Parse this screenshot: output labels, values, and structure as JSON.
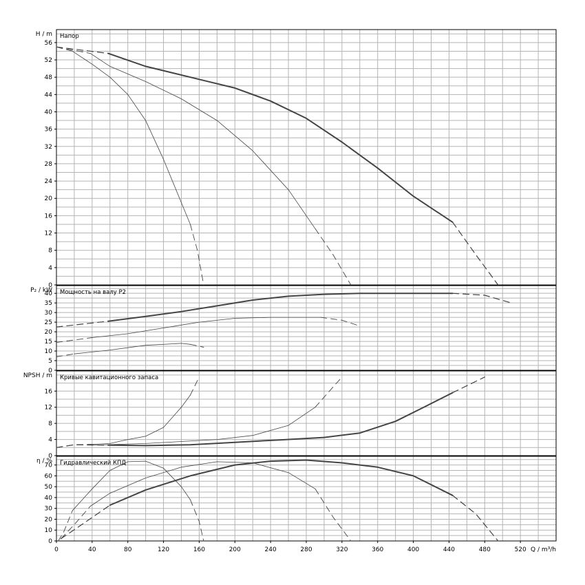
{
  "chart_data": {
    "type": "line",
    "x_axis": {
      "ticks": [
        "0",
        "40",
        "80",
        "120",
        "160",
        "200",
        "240",
        "280",
        "320",
        "360",
        "400",
        "440",
        "480",
        "520"
      ],
      "label": "Q / m³/h",
      "range": [
        0,
        560
      ]
    },
    "panels": [
      {
        "key": "H",
        "title": "Напор",
        "ylabel": "H / m",
        "ylim": [
          0,
          59
        ],
        "yticks": [
          "0",
          "4",
          "8",
          "12",
          "16",
          "20",
          "24",
          "28",
          "32",
          "36",
          "40",
          "44",
          "48",
          "52",
          "56"
        ],
        "yvals": [
          0,
          4,
          8,
          12,
          16,
          20,
          24,
          28,
          32,
          36,
          40,
          44,
          48,
          52,
          56
        ],
        "series": [
          {
            "w": 0.8,
            "solid": [
              [
                18,
                54
              ],
              [
                40,
                51
              ],
              [
                60,
                48
              ],
              [
                80,
                44
              ],
              [
                100,
                38
              ],
              [
                120,
                29
              ],
              [
                140,
                19
              ],
              [
                150,
                14
              ]
            ],
            "dashed": [
              [
                0,
                55
              ],
              [
                18,
                54
              ]
            ],
            "dashed_end": [
              [
                150,
                14
              ],
              [
                158,
                8
              ],
              [
                165,
                0
              ]
            ]
          },
          {
            "w": 0.8,
            "solid": [
              [
                38,
                53.5
              ],
              [
                60,
                50.5
              ],
              [
                100,
                47
              ],
              [
                140,
                43
              ],
              [
                180,
                38
              ],
              [
                220,
                31
              ],
              [
                260,
                22
              ],
              [
                290,
                13
              ]
            ],
            "dashed": [
              [
                0,
                55
              ],
              [
                38,
                53.5
              ]
            ],
            "dashed_end": [
              [
                290,
                13
              ],
              [
                310,
                7
              ],
              [
                330,
                0
              ]
            ]
          },
          {
            "w": 2,
            "solid": [
              [
                58,
                53.5
              ],
              [
                100,
                50.5
              ],
              [
                160,
                47.5
              ],
              [
                200,
                45.5
              ],
              [
                240,
                42.5
              ],
              [
                280,
                38.5
              ],
              [
                320,
                33
              ],
              [
                360,
                27
              ],
              [
                400,
                20.5
              ],
              [
                444,
                14.5
              ]
            ],
            "dashed": [
              [
                0,
                55
              ],
              [
                58,
                53.5
              ]
            ],
            "dashed_end": [
              [
                444,
                14.5
              ],
              [
                470,
                7
              ],
              [
                495,
                0
              ]
            ]
          }
        ]
      },
      {
        "key": "P",
        "title": "Мощность на валу P2",
        "ylabel": "P₂ / kW",
        "ylim": [
          0,
          44
        ],
        "yticks": [
          "0",
          "5",
          "10",
          "15",
          "20",
          "25",
          "30",
          "35",
          "40"
        ],
        "yvals": [
          0,
          5,
          10,
          15,
          20,
          25,
          30,
          35,
          40
        ],
        "series": [
          {
            "w": 0.8,
            "solid": [
              [
                20,
                8.5
              ],
              [
                60,
                10.5
              ],
              [
                100,
                13
              ],
              [
                140,
                14
              ],
              [
                150,
                13.5
              ]
            ],
            "dashed": [
              [
                0,
                7
              ],
              [
                20,
                8.5
              ]
            ],
            "dashed_end": [
              [
                150,
                13.5
              ],
              [
                165,
                12
              ]
            ]
          },
          {
            "w": 0.8,
            "solid": [
              [
                40,
                17
              ],
              [
                80,
                19
              ],
              [
                120,
                22
              ],
              [
                160,
                25
              ],
              [
                200,
                27
              ],
              [
                240,
                27.5
              ],
              [
                296,
                27.5
              ]
            ],
            "dashed": [
              [
                0,
                14.5
              ],
              [
                40,
                17
              ]
            ],
            "dashed_end": [
              [
                296,
                27.5
              ],
              [
                320,
                26
              ],
              [
                340,
                23
              ]
            ]
          },
          {
            "w": 2,
            "solid": [
              [
                58,
                25.5
              ],
              [
                100,
                28
              ],
              [
                140,
                30.5
              ],
              [
                180,
                33.5
              ],
              [
                220,
                36.5
              ],
              [
                260,
                38.5
              ],
              [
                300,
                39.5
              ],
              [
                340,
                40
              ],
              [
                400,
                40
              ],
              [
                444,
                40
              ]
            ],
            "dashed": [
              [
                0,
                22.5
              ],
              [
                58,
                25.5
              ]
            ],
            "dashed_end": [
              [
                444,
                40
              ],
              [
                480,
                39
              ],
              [
                510,
                35
              ]
            ]
          }
        ]
      },
      {
        "key": "NPSH",
        "title": "Кривые кавитационного запаса",
        "ylabel": "NPSH / m",
        "ylim": [
          0,
          21
        ],
        "yticks": [
          "0",
          "4",
          "8",
          "12",
          "16"
        ],
        "yvals": [
          0,
          4,
          8,
          12,
          16
        ],
        "series": [
          {
            "w": 0.8,
            "solid": [
              [
                40,
                2.8
              ],
              [
                60,
                3
              ],
              [
                80,
                4
              ],
              [
                100,
                4.8
              ],
              [
                120,
                7
              ],
              [
                140,
                12
              ],
              [
                150,
                15
              ]
            ],
            "dashed": [
              [
                0,
                2
              ],
              [
                20,
                2.7
              ],
              [
                40,
                2.8
              ]
            ],
            "dashed_end": [
              [
                150,
                15
              ],
              [
                160,
                19.5
              ]
            ]
          },
          {
            "w": 0.8,
            "solid": [
              [
                40,
                2.6
              ],
              [
                100,
                3
              ],
              [
                140,
                3.5
              ],
              [
                180,
                4
              ],
              [
                220,
                5
              ],
              [
                260,
                7.5
              ],
              [
                290,
                12
              ]
            ],
            "dashed": [
              [
                0,
                2
              ],
              [
                20,
                2.7
              ],
              [
                40,
                2.6
              ]
            ],
            "dashed_end": [
              [
                290,
                12
              ],
              [
                310,
                17
              ],
              [
                320,
                19.5
              ]
            ]
          },
          {
            "w": 2,
            "solid": [
              [
                58,
                2.6
              ],
              [
                100,
                2.5
              ],
              [
                150,
                2.7
              ],
              [
                200,
                3.3
              ],
              [
                250,
                3.9
              ],
              [
                300,
                4.5
              ],
              [
                340,
                5.6
              ],
              [
                380,
                8.5
              ],
              [
                410,
                11.8
              ],
              [
                444,
                15.6
              ]
            ],
            "dashed": [
              [
                0,
                2
              ],
              [
                20,
                2.7
              ],
              [
                58,
                2.6
              ]
            ],
            "dashed_end": [
              [
                444,
                15.6
              ],
              [
                480,
                19.5
              ]
            ]
          }
        ]
      },
      {
        "key": "eta",
        "title": "Гидравлический КПД",
        "ylabel": "η / %",
        "ylim": [
          0,
          78
        ],
        "yticks": [
          "0",
          "10",
          "20",
          "30",
          "40",
          "50",
          "60",
          "70"
        ],
        "yvals": [
          0,
          10,
          20,
          30,
          40,
          50,
          60,
          70
        ],
        "series": [
          {
            "w": 0.8,
            "solid": [
              [
                18,
                28
              ],
              [
                40,
                48
              ],
              [
                60,
                65
              ],
              [
                80,
                73
              ],
              [
                100,
                73.5
              ],
              [
                120,
                67
              ],
              [
                140,
                50
              ],
              [
                150,
                38
              ]
            ],
            "dashed": [
              [
                2,
                0
              ],
              [
                8,
                8
              ],
              [
                18,
                28
              ]
            ],
            "dashed_end": [
              [
                150,
                38
              ],
              [
                160,
                18
              ],
              [
                165,
                0
              ]
            ]
          },
          {
            "w": 0.8,
            "solid": [
              [
                38,
                32
              ],
              [
                60,
                44
              ],
              [
                100,
                58
              ],
              [
                140,
                68
              ],
              [
                180,
                73
              ],
              [
                220,
                72
              ],
              [
                260,
                63
              ],
              [
                290,
                48
              ]
            ],
            "dashed": [
              [
                5,
                2
              ],
              [
                20,
                15
              ],
              [
                38,
                32
              ]
            ],
            "dashed_end": [
              [
                290,
                48
              ],
              [
                310,
                22
              ],
              [
                330,
                0
              ]
            ]
          },
          {
            "w": 2,
            "solid": [
              [
                60,
                33
              ],
              [
                100,
                47
              ],
              [
                150,
                60
              ],
              [
                200,
                70
              ],
              [
                240,
                73.5
              ],
              [
                280,
                74.5
              ],
              [
                320,
                72
              ],
              [
                360,
                68
              ],
              [
                400,
                60
              ],
              [
                444,
                42
              ]
            ],
            "dashed": [
              [
                5,
                2
              ],
              [
                30,
                16
              ],
              [
                60,
                33
              ]
            ],
            "dashed_end": [
              [
                444,
                42
              ],
              [
                470,
                25
              ],
              [
                495,
                0
              ]
            ]
          }
        ]
      }
    ]
  }
}
